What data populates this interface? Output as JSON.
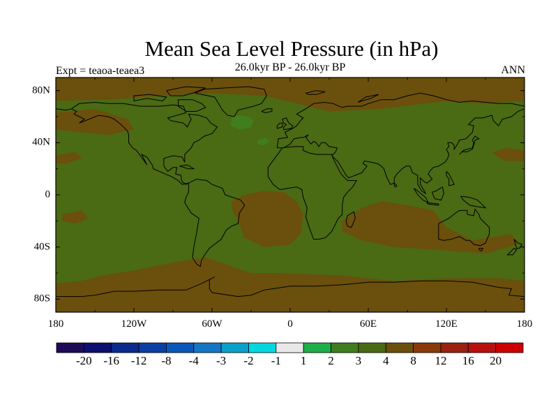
{
  "title": "Mean Sea Level Pressure (in hPa)",
  "subtitle_left": "Expt = teaoa-teaea3",
  "subtitle_center": "26.0kyr BP - 26.0kyr BP",
  "subtitle_right": "ANN",
  "map": {
    "projection": "equirectangular",
    "lon_range": [
      -180,
      180
    ],
    "lat_range": [
      -90,
      90
    ],
    "lon_ticks": [
      "180",
      "120W",
      "60W",
      "0",
      "60E",
      "120E",
      "180"
    ],
    "lat_ticks": [
      "80N",
      "40N",
      "0",
      "40S",
      "80S"
    ],
    "background_level": "3",
    "regions": [
      {
        "name": "north-atlantic-negative-anomaly",
        "level": "2",
        "approx_center": [
          -35,
          55
        ]
      },
      {
        "name": "atlantic-secondary-negative-anomaly",
        "level": "2",
        "approx_center": [
          -20,
          40
        ]
      },
      {
        "name": "south-atlantic-positive-anomaly",
        "level": "4",
        "approx_center": [
          -10,
          -15
        ]
      },
      {
        "name": "indian-ocean-positive-anomaly",
        "level": "4",
        "approx_center": [
          85,
          -20
        ]
      },
      {
        "name": "southern-ocean-positive-anomaly",
        "level": "4",
        "approx_center": [
          -60,
          -65
        ]
      },
      {
        "name": "north-pacific-positive-anomaly",
        "level": "4",
        "approx_center": [
          -160,
          55
        ]
      },
      {
        "name": "arctic-positive-anomaly",
        "level": "4",
        "approx_center": [
          30,
          78
        ]
      }
    ]
  },
  "colorbar": {
    "colors": [
      "#1e0b58",
      "#0c0f70",
      "#0b2a8c",
      "#0b3fa3",
      "#0a57ba",
      "#1577c4",
      "#0aa0cc",
      "#00d8e0",
      "#e8e8e8",
      "#1fae4a",
      "#3f7d1f",
      "#4a6a14",
      "#6b4f0c",
      "#8a3a0a",
      "#9a2210",
      "#b8100e",
      "#cc0000"
    ],
    "labels": [
      "-20",
      "-16",
      "-12",
      "-8",
      "-4",
      "-3",
      "-2",
      "-1",
      "1",
      "2",
      "3",
      "4",
      "8",
      "12",
      "16",
      "20"
    ]
  }
}
